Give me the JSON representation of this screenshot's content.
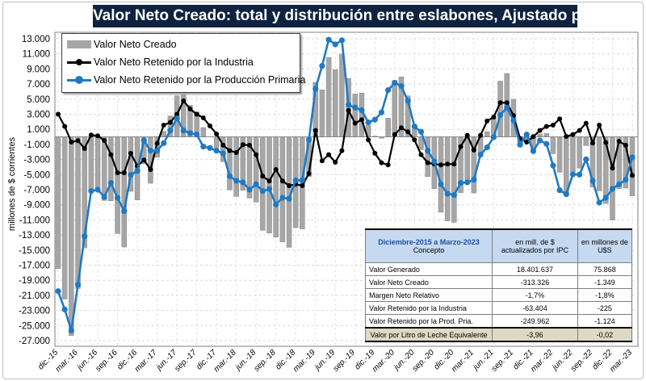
{
  "chart_data": {
    "type": "bar+line",
    "title": "Valor Neto Creado: total y distribución entre eslabones, Ajustado  por IPC",
    "ylabel": "millones de $ corrientes",
    "xlabel": "",
    "ylim": [
      -27000,
      13000
    ],
    "yticks": [
      13000,
      11000,
      9000,
      7000,
      5000,
      3000,
      1000,
      -1000,
      -3000,
      -5000,
      -7000,
      -9000,
      -11000,
      -13000,
      -15000,
      -17000,
      -19000,
      -21000,
      -23000,
      -25000,
      -27000
    ],
    "ytick_labels": [
      "13.000",
      "11.000",
      "9.000",
      "7.000",
      "5.000",
      "3.000",
      "1.000",
      "-1.000",
      "-3.000",
      "-5.000",
      "-7.000",
      "-9.000",
      "-11.000",
      "-13.000",
      "-15.000",
      "-17.000",
      "-19.000",
      "-21.000",
      "-23.000",
      "-25.000",
      "-27.000"
    ],
    "xtick_labels": [
      "dic.-15",
      "mar.-16",
      "jun.-16",
      "sep.-16",
      "dic.-16",
      "mar.-17",
      "jun.-17",
      "sep.-17",
      "dic.-17",
      "mar.-18",
      "jun.-18",
      "sep.-18",
      "dic.-18",
      "mar.-19",
      "jun.-19",
      "sep.-19",
      "dic.-19",
      "mar.-20",
      "jun.-20",
      "sep.-20",
      "dic.-20",
      "mar.-21",
      "jun.-21",
      "sep.-21",
      "dic.-21",
      "mar.-22",
      "jun.-22",
      "sep.-22",
      "dic.-22",
      "mar.-23"
    ],
    "x_start": "dic.-15",
    "x_end": "mar.-23",
    "x_frequency": "monthly",
    "grid": true,
    "legend_placement": "top-left",
    "series": [
      {
        "name": "Valor Neto Creado",
        "type": "bar",
        "color": "#a6a6a6",
        "values": [
          -17450,
          -21490,
          -26340,
          -20090,
          -14710,
          -6930,
          -6860,
          -8430,
          -8470,
          -12820,
          -14600,
          -7220,
          -8360,
          -3540,
          -6150,
          -2700,
          730,
          2770,
          5440,
          5620,
          4190,
          3310,
          1230,
          -20,
          -1450,
          -3290,
          -7040,
          -7900,
          -7070,
          -8110,
          -8640,
          -12390,
          -12750,
          -13280,
          -13920,
          -14640,
          -12030,
          -12210,
          -5260,
          7230,
          6230,
          10510,
          8900,
          10970,
          7740,
          5690,
          5800,
          1520,
          100,
          -190,
          2490,
          7470,
          7940,
          5440,
          980,
          -1690,
          -5260,
          -6860,
          -9990,
          -11140,
          -11320,
          -7400,
          -5830,
          -7430,
          -2160,
          700,
          2590,
          7400,
          8400,
          4980,
          -1260,
          -380,
          -1860,
          380,
          450,
          -2230,
          -4690,
          -7540,
          -4650,
          -4150,
          -1160,
          -6650,
          -7150,
          -8830,
          -11030,
          -6860,
          -6790,
          -7820
        ]
      },
      {
        "name": "Valor Neto Retenido por la Industria",
        "type": "line",
        "color": "#000000",
        "values": [
          3000,
          1380,
          -690,
          -500,
          -1540,
          250,
          140,
          -470,
          -2360,
          -4750,
          -4750,
          -2180,
          -3860,
          -3070,
          -4320,
          -870,
          1560,
          1920,
          2990,
          4770,
          3700,
          3000,
          2520,
          1450,
          380,
          -1110,
          -1830,
          -2080,
          -1040,
          -1110,
          -2360,
          -5210,
          -5850,
          -4320,
          -5850,
          -6460,
          -6280,
          -6460,
          -4860,
          850,
          -3180,
          -2360,
          -3360,
          -1830,
          3500,
          1810,
          2280,
          -400,
          -2180,
          -3430,
          -3710,
          310,
          1210,
          670,
          -400,
          -2360,
          -3430,
          -3610,
          -3710,
          -3610,
          -3610,
          -1290,
          200,
          -1750,
          200,
          2100,
          2630,
          4520,
          4520,
          2810,
          -220,
          -690,
          30,
          850,
          1380,
          1560,
          2380,
          60,
          310,
          850,
          1810,
          -830,
          1560,
          -760,
          -4140,
          -580,
          -1110,
          -5100
        ]
      },
      {
        "name": "Valor Neto Retenido por la Producción Primaria",
        "type": "line",
        "color": "#1f7ac4",
        "values": [
          -20450,
          -22870,
          -25650,
          -19590,
          -13170,
          -7180,
          -7000,
          -7960,
          -6110,
          -8070,
          -9850,
          -5040,
          -4500,
          -470,
          -1830,
          -1830,
          -830,
          850,
          2450,
          850,
          490,
          310,
          -1290,
          -1470,
          -1830,
          -2180,
          -5210,
          -5820,
          -6030,
          -7000,
          -6280,
          -7180,
          -6900,
          -8960,
          -8070,
          -8180,
          -5750,
          -5750,
          -400,
          6380,
          9410,
          12870,
          12260,
          12800,
          4240,
          3880,
          3520,
          1920,
          2280,
          3240,
          6200,
          7160,
          6730,
          4770,
          1380,
          670,
          -1830,
          -3250,
          -6280,
          -7530,
          -7710,
          -6110,
          -6030,
          -5680,
          -2360,
          -1400,
          -40,
          2880,
          3880,
          2170,
          -1040,
          310,
          -1890,
          -470,
          -930,
          -3790,
          -7070,
          -7600,
          -4960,
          -5000,
          -2970,
          -5820,
          -8710,
          -8070,
          -6890,
          -6280,
          -5680,
          -2720
        ]
      }
    ]
  },
  "table": {
    "header": {
      "period": "Diciembre-2015 a Marzo-2023",
      "concept": "Concepto",
      "col_ars": "en mill. de $ actualizados por IPC",
      "col_usd": "en millones de U$S"
    },
    "rows": [
      {
        "concept": "Valor Generado",
        "ars": "18.401.637",
        "usd": "75.868"
      },
      {
        "concept": "Valor Neto Creado",
        "ars": "-313.326",
        "usd": "-1.349"
      },
      {
        "concept": "Margen Neto Relativo",
        "ars": "-1,7%",
        "usd": "-1,8%"
      },
      {
        "concept": "Valor Retenido por la Industria",
        "ars": "-63.404",
        "usd": "-225"
      },
      {
        "concept": "Valor Retenido por la Prod. Pria.",
        "ars": "-249.962",
        "usd": "-1.124"
      },
      {
        "concept": "Valor por Litro de Leche Equivalente",
        "ars": "-3,96",
        "usd": "-0,02"
      }
    ]
  }
}
